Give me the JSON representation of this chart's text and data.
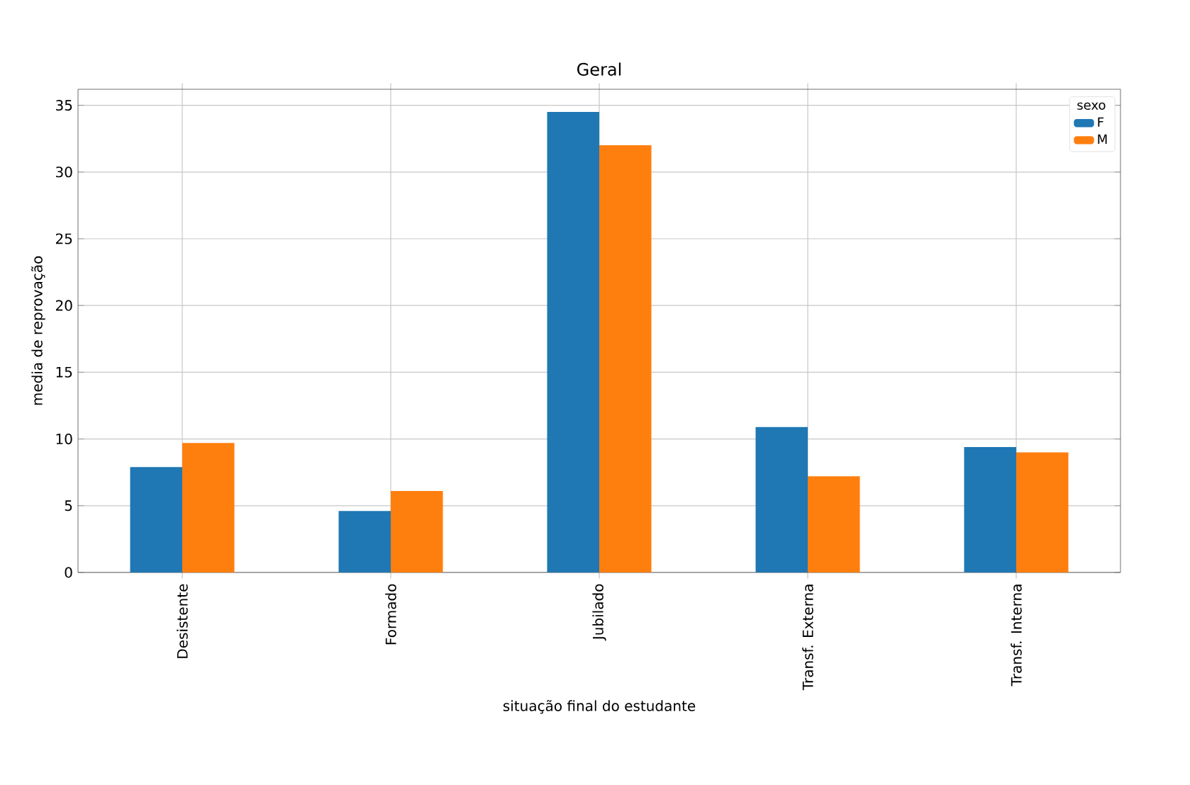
{
  "chart_data": {
    "type": "bar",
    "title": "Geral",
    "xlabel": "situação final do estudante",
    "ylabel": "media de reprovação",
    "legend_title": "sexo",
    "categories": [
      "Desistente",
      "Formado",
      "Jubilado",
      "Transf. Externa",
      "Transf. Interna"
    ],
    "series": [
      {
        "name": "F",
        "color": "#1f77b4",
        "values": [
          7.9,
          4.6,
          34.5,
          10.9,
          9.4
        ]
      },
      {
        "name": "M",
        "color": "#ff7f0e",
        "values": [
          9.7,
          6.1,
          32.0,
          7.2,
          9.0
        ]
      }
    ],
    "ylim": [
      0,
      36.2
    ],
    "yticks": [
      0,
      5,
      10,
      15,
      20,
      25,
      30,
      35
    ],
    "grid": true,
    "legend": "top right"
  }
}
